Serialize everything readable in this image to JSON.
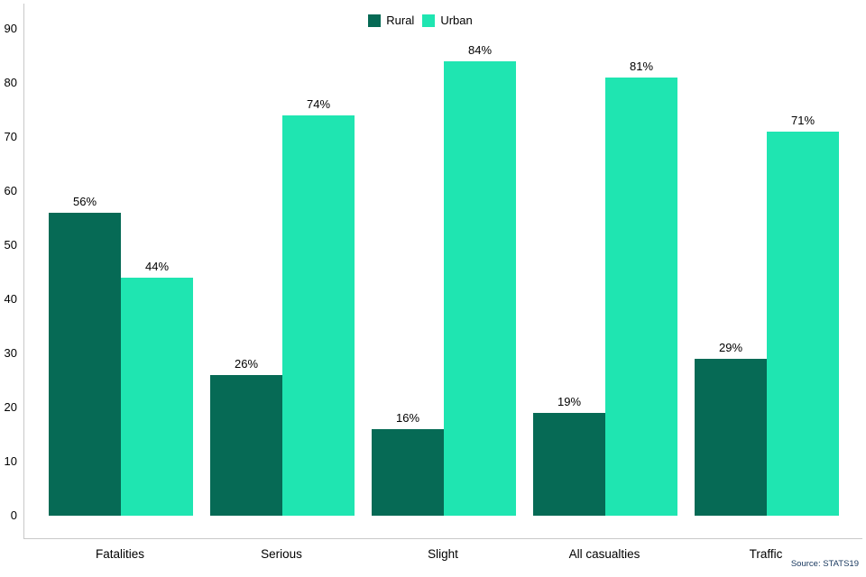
{
  "chart_data": {
    "type": "bar",
    "title": "",
    "categories": [
      "Fatalities",
      "Serious",
      "Slight",
      "All casualties",
      "Traffic"
    ],
    "series": [
      {
        "name": "Rural",
        "color": "#066a55",
        "values": [
          56,
          26,
          16,
          19,
          29
        ]
      },
      {
        "name": "Urban",
        "color": "#1fe5b1",
        "values": [
          44,
          74,
          84,
          81,
          71
        ]
      }
    ],
    "value_suffix": "%",
    "data_labels": {
      "Rural": [
        "56%",
        "26%",
        "16%",
        "19%",
        "29%"
      ],
      "Urban": [
        "44%",
        "74%",
        "84%",
        "81%",
        "71%"
      ]
    },
    "ylabel": "",
    "xlabel": "",
    "ylim": [
      0,
      90
    ],
    "yticks": [
      0,
      10,
      20,
      30,
      40,
      50,
      60,
      70,
      80,
      90
    ],
    "grid": false,
    "legend_position": "top-center",
    "source": "Source: STATS19",
    "axis_line_color": "#c9c9c9",
    "label_color": "#000000",
    "source_color": "#17375e"
  }
}
